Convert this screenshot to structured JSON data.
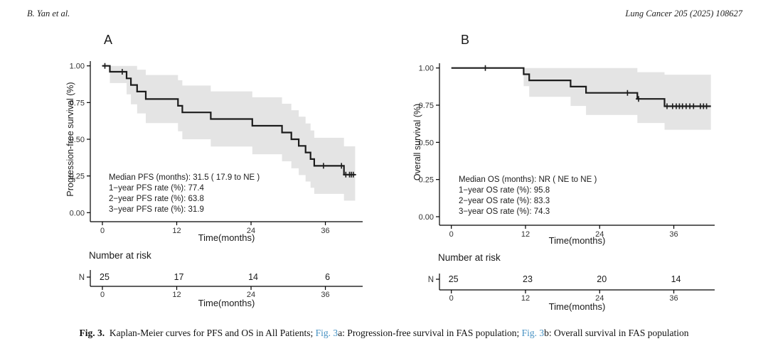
{
  "page": {
    "author": "B. Yan et al.",
    "journal": "Lung Cancer 205 (2025) 108627"
  },
  "colors": {
    "curve": "#1c1c1c",
    "ci_band": "#e4e4e4",
    "axis": "#000000",
    "tick_text": "#333333",
    "link_blue": "#4691c3",
    "background": "#ffffff"
  },
  "caption": {
    "label": "Fig. 3.",
    "text1": "  Kaplan-Meier curves for PFS and OS in All Patients; ",
    "ref1": "Fig. 3",
    "text2": "a: Progression-free survival in FAS population; ",
    "ref2": "Fig. 3",
    "text3": "b: Overall survival in FAS population"
  },
  "chart_data": [
    {
      "type": "km_survival_curve",
      "panel_label": "A",
      "ylabel": "Progression-free survival (%)",
      "xlabel": "Time(months)",
      "xlim": [
        0,
        42
      ],
      "ylim": [
        0,
        1
      ],
      "xticks": [
        0,
        12,
        24,
        36
      ],
      "yticks": [
        0,
        0.25,
        0.5,
        0.75,
        1
      ],
      "ytick_labels": [
        "0.00",
        "0.25",
        "0.50",
        "0.75",
        "1.00"
      ],
      "annotation": [
        "Median PFS (months): 31.5 ( 17.9 to NE )",
        "1−year PFS rate (%): 77.4",
        "2−year PFS rate (%): 63.8",
        "3−year PFS rate (%): 31.9"
      ],
      "steps": [
        [
          0,
          1.0
        ],
        [
          1.2,
          0.96
        ],
        [
          3.9,
          0.915
        ],
        [
          4.6,
          0.87
        ],
        [
          5.6,
          0.825
        ],
        [
          7.0,
          0.774
        ],
        [
          12.2,
          0.728
        ],
        [
          12.9,
          0.683
        ],
        [
          17.5,
          0.638
        ],
        [
          24.2,
          0.592
        ],
        [
          29.0,
          0.546
        ],
        [
          30.5,
          0.5
        ],
        [
          31.7,
          0.455
        ],
        [
          32.8,
          0.41
        ],
        [
          33.6,
          0.365
        ],
        [
          34.2,
          0.319
        ],
        [
          39.0,
          0.259
        ]
      ],
      "end_time": 40.8,
      "censor_marks": [
        [
          0.4,
          1.0
        ],
        [
          3.2,
          0.96
        ],
        [
          35.7,
          0.319
        ],
        [
          38.6,
          0.319
        ],
        [
          39.3,
          0.259
        ],
        [
          39.9,
          0.259
        ],
        [
          40.2,
          0.259
        ],
        [
          40.5,
          0.259
        ]
      ],
      "ci_band": [
        [
          1.2,
          0.883,
          1.0
        ],
        [
          3.9,
          0.806,
          1.0
        ],
        [
          4.6,
          0.738,
          1.0
        ],
        [
          5.6,
          0.676,
          0.974
        ],
        [
          7.0,
          0.61,
          0.938
        ],
        [
          12.2,
          0.554,
          0.902
        ],
        [
          12.9,
          0.5,
          0.866
        ],
        [
          17.5,
          0.45,
          0.826
        ],
        [
          24.2,
          0.398,
          0.786
        ],
        [
          29.0,
          0.35,
          0.742
        ],
        [
          30.5,
          0.302,
          0.698
        ],
        [
          31.7,
          0.256,
          0.654
        ],
        [
          32.8,
          0.212,
          0.608
        ],
        [
          33.6,
          0.17,
          0.56
        ],
        [
          34.2,
          0.128,
          0.51
        ],
        [
          39.0,
          0.082,
          0.452
        ]
      ],
      "risk_table": {
        "title": "Number at risk",
        "row_label": "N",
        "times": [
          0,
          12,
          24,
          36
        ],
        "counts": [
          25,
          17,
          14,
          6
        ]
      }
    },
    {
      "type": "km_survival_curve",
      "panel_label": "B",
      "ylabel": "Overall survival (%)",
      "xlabel": "Time(months)",
      "xlim": [
        0,
        42
      ],
      "ylim": [
        0,
        1
      ],
      "xticks": [
        0,
        12,
        24,
        36
      ],
      "yticks": [
        0,
        0.25,
        0.5,
        0.75,
        1
      ],
      "ytick_labels": [
        "0.00",
        "0.25",
        "0.50",
        "0.75",
        "1.00"
      ],
      "annotation": [
        "Median OS (months): NR ( NE to NE )",
        "1−year OS rate (%): 95.8",
        "2−year OS rate (%): 83.3",
        "3−year OS rate (%): 74.3"
      ],
      "steps": [
        [
          0,
          1.0
        ],
        [
          11.7,
          0.958
        ],
        [
          12.6,
          0.917
        ],
        [
          19.3,
          0.875
        ],
        [
          21.8,
          0.833
        ],
        [
          30.1,
          0.792
        ],
        [
          34.5,
          0.743
        ]
      ],
      "end_time": 42,
      "censor_marks": [
        [
          5.5,
          1.0
        ],
        [
          28.5,
          0.833
        ],
        [
          30.3,
          0.792
        ],
        [
          34.9,
          0.743
        ],
        [
          35.8,
          0.743
        ],
        [
          36.4,
          0.743
        ],
        [
          36.9,
          0.743
        ],
        [
          37.4,
          0.743
        ],
        [
          38.0,
          0.743
        ],
        [
          38.6,
          0.743
        ],
        [
          39.2,
          0.743
        ],
        [
          40.3,
          0.743
        ],
        [
          40.8,
          0.743
        ],
        [
          41.3,
          0.743
        ]
      ],
      "ci_band": [
        [
          11.7,
          0.878,
          1.0
        ],
        [
          12.6,
          0.806,
          1.0
        ],
        [
          19.3,
          0.745,
          1.0
        ],
        [
          21.8,
          0.684,
          1.0
        ],
        [
          30.1,
          0.63,
          0.972
        ],
        [
          34.5,
          0.585,
          0.955
        ]
      ],
      "risk_table": {
        "title": "Number at risk",
        "row_label": "N",
        "times": [
          0,
          12,
          24,
          36
        ],
        "counts": [
          25,
          23,
          20,
          14
        ]
      }
    }
  ]
}
